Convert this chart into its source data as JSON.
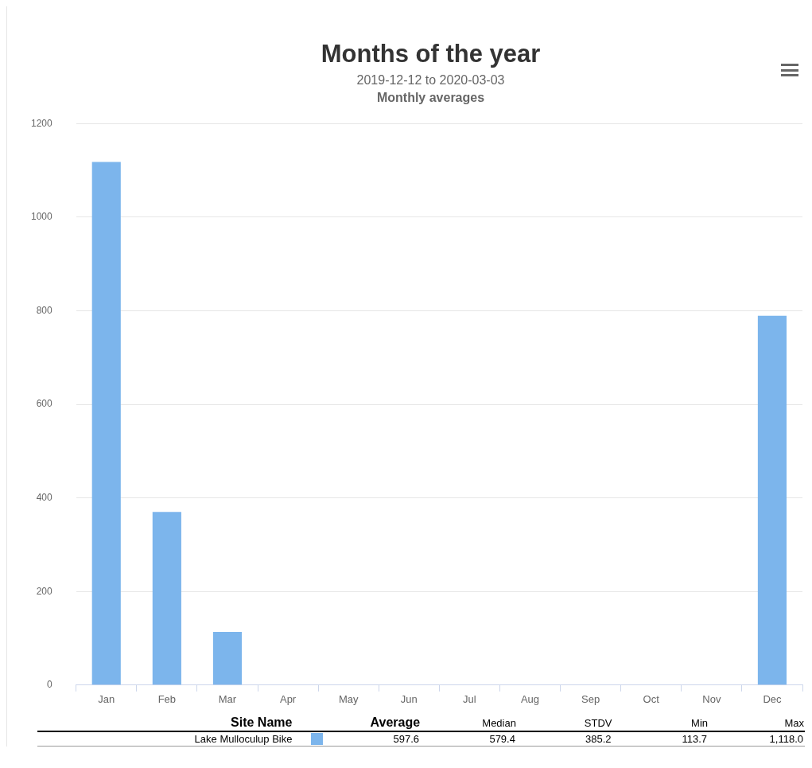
{
  "chart_data": {
    "type": "bar",
    "title": "Months of the year",
    "subtitle": "2019-12-12 to 2020-03-03",
    "annotations": [
      "Monthly averages",
      "Site Name",
      "Average",
      "Median",
      "STDV",
      "Min",
      "Max",
      "597.6",
      "579.4",
      "385.2",
      "113.7",
      "1,118.0"
    ],
    "categories": [
      "Jan",
      "Feb",
      "Mar",
      "Apr",
      "May",
      "Jun",
      "Jul",
      "Aug",
      "Sep",
      "Oct",
      "Nov",
      "Dec"
    ],
    "series": [
      {
        "name": "Lake Mulloculup Bike",
        "color": "#7cb5ec",
        "values": [
          1118.0,
          370,
          113.7,
          null,
          null,
          null,
          null,
          null,
          null,
          null,
          null,
          789
        ]
      }
    ],
    "ylim": [
      0,
      1200
    ],
    "yticks": [
      0,
      200,
      400,
      600,
      800,
      1000,
      1200
    ],
    "grid": "y",
    "legend": "bottom"
  }
}
